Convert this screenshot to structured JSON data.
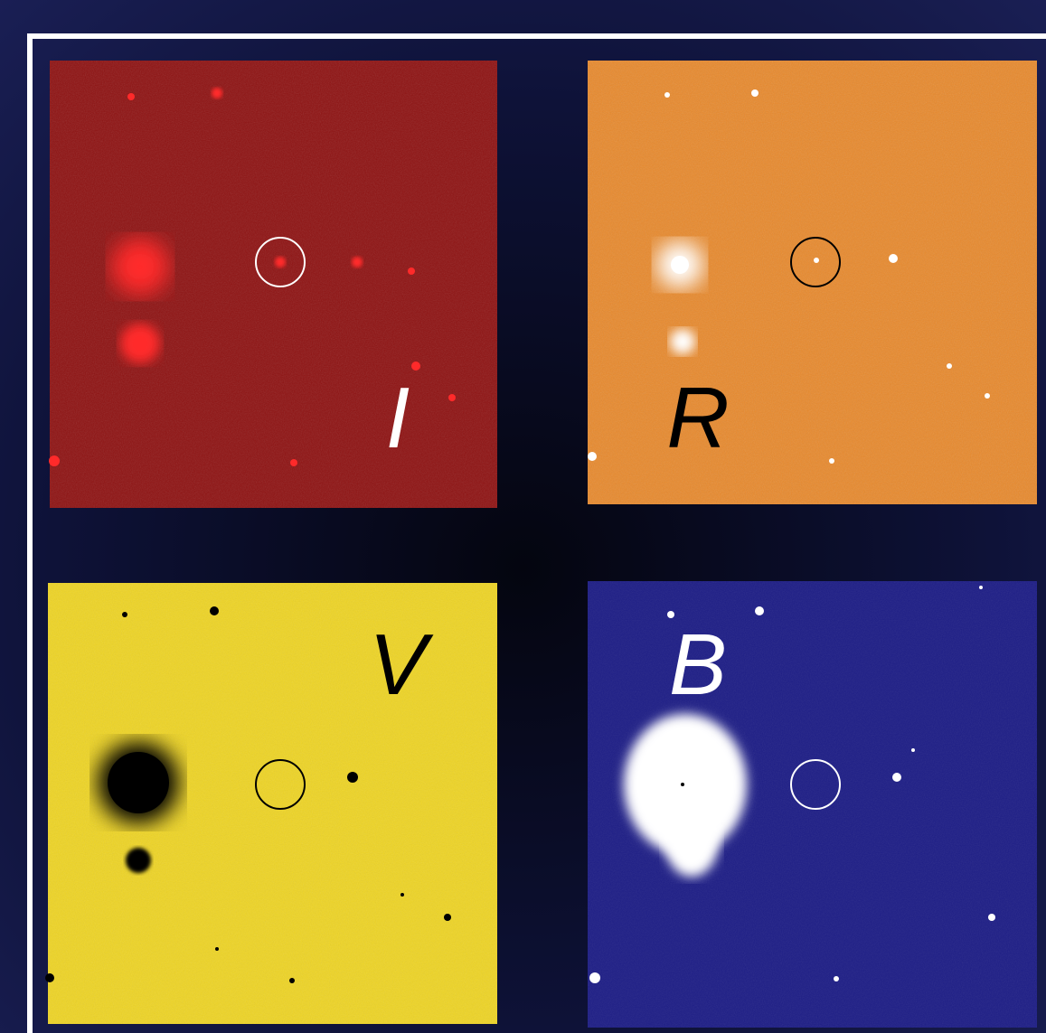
{
  "panels": [
    {
      "label": "I"
    },
    {
      "label": "R"
    },
    {
      "label": "V"
    },
    {
      "label": "B"
    }
  ]
}
